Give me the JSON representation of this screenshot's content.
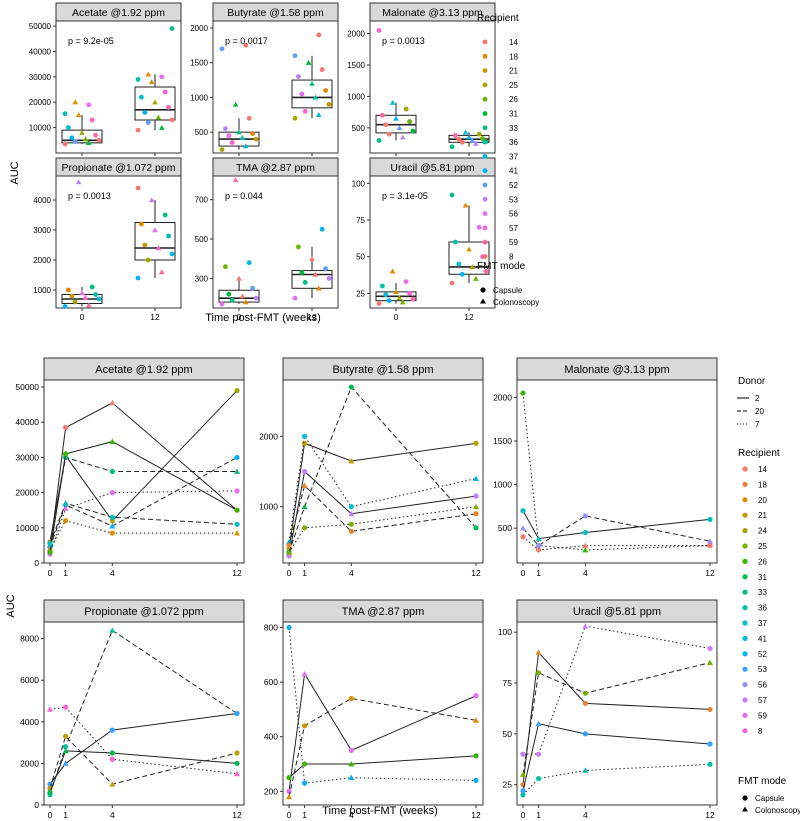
{
  "top_figure": {
    "x_axis_label": "Time post-FMT (weeks)",
    "y_axis_label": "AUC",
    "legend": {
      "recipient_title": "Recipient",
      "recipients": [
        "14",
        "18",
        "21",
        "25",
        "26",
        "31",
        "33",
        "36",
        "37",
        "41",
        "52",
        "53",
        "56",
        "57",
        "59",
        "8"
      ],
      "mode_title": "FMT mode",
      "modes": [
        "Capsule",
        "Colonoscopy"
      ]
    }
  },
  "bottom_figure": {
    "x_axis_label": "Time post-FMT (weeks)",
    "y_axis_label": "AUC",
    "legend": {
      "donor_title": "Donor",
      "donors": [
        "2",
        "20",
        "7"
      ],
      "recipient_title": "Recipient",
      "recipients": [
        "14",
        "18",
        "20",
        "21",
        "24",
        "25",
        "26",
        "31",
        "33",
        "36",
        "37",
        "41",
        "52",
        "53",
        "56",
        "57",
        "59",
        "8"
      ],
      "mode_title": "FMT mode",
      "modes": [
        "Capsule",
        "Colonoscopy"
      ]
    }
  },
  "colors": {
    "recipient_top": [
      "#f8766d",
      "#e58700",
      "#c99800",
      "#a3a500",
      "#6bb100",
      "#00ba38",
      "#00bf7d",
      "#00c0af",
      "#00bcd8",
      "#00b0f6",
      "#619cff",
      "#b983ff",
      "#e76bf3",
      "#fd61d1",
      "#ff67a4",
      "#f8766d"
    ],
    "recipient_bottom": [
      "#f8766d",
      "#ea8331",
      "#d89000",
      "#c09b00",
      "#a3a500",
      "#7cae00",
      "#39b600",
      "#00bb4e",
      "#00bf7d",
      "#00c1a3",
      "#00bfc4",
      "#00bae0",
      "#00b0f6",
      "#35a2ff",
      "#9590ff",
      "#c77cff",
      "#e76bf3",
      "#fa62db"
    ],
    "strip_fill": "#d9d9d9",
    "panel_border": "#333333"
  },
  "chart_data": [
    {
      "type": "box",
      "title": "Acetate @1.92 ppm",
      "annotation": "p = 9.2e-05",
      "categories": [
        "0",
        "12"
      ],
      "ylim": [
        0,
        52000
      ],
      "y_ticks": [
        10000,
        20000,
        30000,
        40000,
        50000
      ],
      "xlabel": "Time post-FMT (weeks)",
      "ylabel": "AUC",
      "boxes": [
        {
          "x": "0",
          "q1": 4000,
          "median": 5000,
          "q3": 9000,
          "whisker_low": 3500,
          "whisker_high": 15000
        },
        {
          "x": "12",
          "q1": 13000,
          "median": 17000,
          "q3": 26000,
          "whisker_low": 9000,
          "whisker_high": 31000
        }
      ],
      "points": [
        {
          "week": 0,
          "values": [
            3500,
            4000,
            4500,
            5000,
            5500,
            6000,
            7000,
            8000,
            10000,
            13000,
            15000,
            15500,
            19000,
            20000
          ]
        },
        {
          "week": 12,
          "values": [
            9000,
            10000,
            12000,
            13000,
            14000,
            16000,
            18000,
            20000,
            22000,
            24000,
            28000,
            29000,
            30000,
            31000,
            49000
          ]
        }
      ]
    },
    {
      "type": "box",
      "title": "Butyrate @1.58 ppm",
      "annotation": "p = 0.0017",
      "categories": [
        "0",
        "12"
      ],
      "ylim": [
        200,
        2100
      ],
      "y_ticks": [
        500,
        1000,
        1500,
        2000
      ],
      "xlabel": "Time post-FMT (weeks)",
      "ylabel": "AUC",
      "boxes": [
        {
          "x": "0",
          "q1": 300,
          "median": 400,
          "q3": 500,
          "whisker_low": 250,
          "whisker_high": 700
        },
        {
          "x": "12",
          "q1": 850,
          "median": 1000,
          "q3": 1250,
          "whisker_low": 700,
          "whisker_high": 1600
        }
      ],
      "points": [
        {
          "week": 0,
          "values": [
            250,
            300,
            350,
            400,
            420,
            450,
            480,
            500,
            550,
            700,
            900,
            1700,
            1750
          ]
        },
        {
          "week": 12,
          "values": [
            700,
            750,
            800,
            900,
            1000,
            1050,
            1100,
            1200,
            1300,
            1400,
            1500,
            1600,
            1900
          ]
        }
      ]
    },
    {
      "type": "box",
      "title": "Malonate @3.13 ppm",
      "annotation": "p = 0.0013",
      "categories": [
        "0",
        "12"
      ],
      "ylim": [
        100,
        2200
      ],
      "y_ticks": [
        500,
        1000,
        1500,
        2000
      ],
      "xlabel": "Time post-FMT (weeks)",
      "ylabel": "AUC",
      "boxes": [
        {
          "x": "0",
          "q1": 420,
          "median": 550,
          "q3": 700,
          "whisker_low": 300,
          "whisker_high": 900
        },
        {
          "x": "12",
          "q1": 270,
          "median": 320,
          "q3": 380,
          "whisker_low": 200,
          "whisker_high": 430
        }
      ],
      "points": [
        {
          "week": 0,
          "values": [
            300,
            350,
            400,
            450,
            500,
            550,
            600,
            650,
            700,
            800,
            900,
            2050
          ]
        },
        {
          "week": 12,
          "values": [
            200,
            250,
            270,
            280,
            300,
            320,
            330,
            350,
            380,
            400,
            430
          ]
        }
      ]
    },
    {
      "type": "box",
      "title": "Propionate @1.072 ppm",
      "annotation": "p = 0.0013",
      "categories": [
        "0",
        "12"
      ],
      "ylim": [
        400,
        4800
      ],
      "y_ticks": [
        1000,
        2000,
        3000,
        4000
      ],
      "xlabel": "Time post-FMT (weeks)",
      "ylabel": "AUC",
      "boxes": [
        {
          "x": "0",
          "q1": 550,
          "median": 700,
          "q3": 850,
          "whisker_low": 450,
          "whisker_high": 1100
        },
        {
          "x": "12",
          "q1": 2000,
          "median": 2400,
          "q3": 3250,
          "whisker_low": 1400,
          "whisker_high": 4000
        }
      ],
      "points": [
        {
          "week": 0,
          "values": [
            450,
            500,
            600,
            700,
            750,
            800,
            850,
            900,
            1000,
            1100,
            4600
          ]
        },
        {
          "week": 12,
          "values": [
            1400,
            1600,
            2000,
            2200,
            2400,
            2500,
            2800,
            3000,
            3200,
            3500,
            4000,
            4400
          ]
        }
      ]
    },
    {
      "type": "box",
      "title": "TMA @2.87 ppm",
      "annotation": "p = 0.044",
      "categories": [
        "0",
        "12"
      ],
      "ylim": [
        150,
        820
      ],
      "y_ticks": [
        300,
        500,
        700
      ],
      "xlabel": "Time post-FMT (weeks)",
      "ylabel": "AUC",
      "boxes": [
        {
          "x": "0",
          "q1": 180,
          "median": 200,
          "q3": 240,
          "whisker_low": 170,
          "whisker_high": 300
        },
        {
          "x": "12",
          "q1": 250,
          "median": 320,
          "q3": 340,
          "whisker_low": 200,
          "whisker_high": 460
        }
      ],
      "points": [
        {
          "week": 0,
          "values": [
            170,
            180,
            190,
            200,
            210,
            220,
            250,
            300,
            360,
            380,
            800
          ]
        },
        {
          "week": 12,
          "values": [
            200,
            250,
            280,
            300,
            320,
            330,
            350,
            400,
            460,
            550
          ]
        }
      ]
    },
    {
      "type": "box",
      "title": "Uracil @5.81 ppm",
      "annotation": "p = 3.1e-05",
      "categories": [
        "0",
        "12"
      ],
      "ylim": [
        15,
        105
      ],
      "y_ticks": [
        25,
        50,
        75,
        100
      ],
      "xlabel": "Time post-FMT (weeks)",
      "ylabel": "AUC",
      "boxes": [
        {
          "x": "0",
          "q1": 20,
          "median": 23,
          "q3": 26,
          "whisker_low": 18,
          "whisker_high": 32
        },
        {
          "x": "12",
          "q1": 38,
          "median": 43,
          "q3": 60,
          "whisker_low": 32,
          "whisker_high": 85
        }
      ],
      "points": [
        {
          "week": 0,
          "values": [
            18,
            19,
            20,
            21,
            22,
            24,
            25,
            26,
            30,
            33,
            40
          ]
        },
        {
          "week": 12,
          "values": [
            32,
            35,
            38,
            40,
            43,
            45,
            50,
            55,
            60,
            70,
            85,
            92
          ]
        }
      ]
    },
    {
      "type": "line",
      "title": "Acetate @1.92 ppm",
      "x": [
        0,
        1,
        4,
        12
      ],
      "ylim": [
        0,
        52000
      ],
      "y_ticks": [
        0,
        10000,
        20000,
        30000,
        40000,
        50000
      ],
      "xlabel": "Time post-FMT (weeks)",
      "ylabel": "AUC",
      "series": [
        {
          "donor": "2",
          "values": [
            3500,
            38500,
            45500,
            15000
          ]
        },
        {
          "donor": "2",
          "values": [
            6000,
            30500,
            12000,
            49000
          ]
        },
        {
          "donor": "20",
          "values": [
            5000,
            30000,
            26000,
            26000
          ]
        },
        {
          "donor": "20",
          "values": [
            4500,
            16500,
            10500,
            30000
          ]
        },
        {
          "donor": "7",
          "values": [
            2500,
            15500,
            20000,
            20500
          ]
        },
        {
          "donor": "7",
          "values": [
            4000,
            12000,
            8500,
            8500
          ]
        },
        {
          "donor": "2",
          "values": [
            3000,
            31000,
            34500,
            15000
          ]
        },
        {
          "donor": "20",
          "values": [
            5500,
            17000,
            13000,
            11000
          ]
        }
      ]
    },
    {
      "type": "line",
      "title": "Butyrate @1.58 ppm",
      "x": [
        0,
        1,
        4,
        12
      ],
      "ylim": [
        200,
        2800
      ],
      "y_ticks": [
        1000,
        2000
      ],
      "xlabel": "Time post-FMT (weeks)",
      "ylabel": "AUC",
      "series": [
        {
          "donor": "2",
          "values": [
            400,
            1900,
            1650,
            1900
          ]
        },
        {
          "donor": "20",
          "values": [
            350,
            1000,
            2700,
            700
          ]
        },
        {
          "donor": "7",
          "values": [
            500,
            2000,
            1000,
            1400
          ]
        },
        {
          "donor": "2",
          "values": [
            300,
            1500,
            900,
            1150
          ]
        },
        {
          "donor": "20",
          "values": [
            450,
            1300,
            650,
            900
          ]
        },
        {
          "donor": "7",
          "values": [
            350,
            700,
            750,
            1000
          ]
        }
      ]
    },
    {
      "type": "line",
      "title": "Malonate @3.13 ppm",
      "x": [
        0,
        1,
        4,
        12
      ],
      "ylim": [
        100,
        2200
      ],
      "y_ticks": [
        500,
        1000,
        1500,
        2000
      ],
      "xlabel": "Time post-FMT (weeks)",
      "ylabel": "AUC",
      "series": [
        {
          "donor": "7",
          "values": [
            2050,
            300,
            250,
            300
          ]
        },
        {
          "donor": "2",
          "values": [
            700,
            380,
            450,
            600
          ]
        },
        {
          "donor": "20",
          "values": [
            500,
            300,
            640,
            350
          ]
        },
        {
          "donor": "7",
          "values": [
            400,
            250,
            300,
            300
          ]
        }
      ]
    },
    {
      "type": "line",
      "title": "Propionate @1.072 ppm",
      "x": [
        0,
        1,
        4,
        12
      ],
      "ylim": [
        0,
        8800
      ],
      "y_ticks": [
        0,
        2000,
        4000,
        6000,
        8000
      ],
      "xlabel": "Time post-FMT (weeks)",
      "ylabel": "AUC",
      "series": [
        {
          "donor": "20",
          "values": [
            500,
            2800,
            8400,
            4400
          ]
        },
        {
          "donor": "2",
          "values": [
            1000,
            2000,
            3600,
            4400
          ]
        },
        {
          "donor": "7",
          "values": [
            4600,
            4700,
            2200,
            1500
          ]
        },
        {
          "donor": "20",
          "values": [
            800,
            3300,
            1000,
            2500
          ]
        },
        {
          "donor": "2",
          "values": [
            600,
            2600,
            2500,
            2000
          ]
        }
      ]
    },
    {
      "type": "line",
      "title": "TMA @2.87 ppm",
      "x": [
        0,
        1,
        4,
        12
      ],
      "ylim": [
        150,
        820
      ],
      "y_ticks": [
        200,
        400,
        600,
        800
      ],
      "xlabel": "Time post-FMT (weeks)",
      "ylabel": "AUC",
      "series": [
        {
          "donor": "7",
          "values": [
            800,
            230,
            250,
            240
          ]
        },
        {
          "donor": "2",
          "values": [
            200,
            630,
            350,
            550
          ]
        },
        {
          "donor": "20",
          "values": [
            180,
            440,
            540,
            460
          ]
        },
        {
          "donor": "2",
          "values": [
            250,
            300,
            300,
            330
          ]
        }
      ]
    },
    {
      "type": "line",
      "title": "Uracil @5.81 ppm",
      "x": [
        0,
        1,
        4,
        12
      ],
      "ylim": [
        15,
        105
      ],
      "y_ticks": [
        25,
        50,
        75,
        100
      ],
      "xlabel": "Time post-FMT (weeks)",
      "ylabel": "AUC",
      "series": [
        {
          "donor": "7",
          "values": [
            40,
            40,
            103,
            92
          ]
        },
        {
          "donor": "2",
          "values": [
            25,
            90,
            65,
            62
          ]
        },
        {
          "donor": "20",
          "values": [
            30,
            80,
            70,
            85
          ]
        },
        {
          "donor": "7",
          "values": [
            20,
            28,
            32,
            35
          ]
        },
        {
          "donor": "2",
          "values": [
            22,
            55,
            50,
            45
          ]
        }
      ]
    }
  ]
}
